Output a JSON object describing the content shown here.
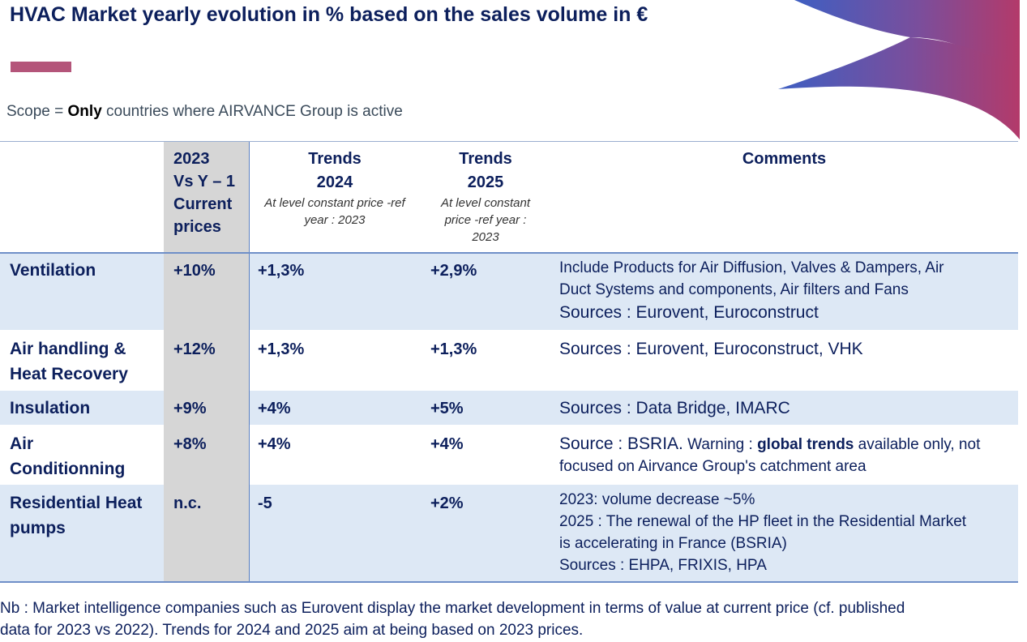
{
  "title": "HVAC Market yearly evolution in % based on the sales volume in €",
  "scope": {
    "prefix": "Scope = ",
    "emphasis": "Only",
    "suffix": " countries where AIRVANCE Group is active"
  },
  "colors": {
    "navy": "#0c1f5c",
    "accent": "#b4557a",
    "band": "#dde8f5",
    "grey_column": "#d6d6d6",
    "rule": "#6f8fc8"
  },
  "header": {
    "col2": [
      "2023",
      "Vs Y – 1",
      "Current",
      "prices"
    ],
    "col3": {
      "line1": "Trends",
      "line2": "2024",
      "note_lines": [
        "At level constant price -ref",
        "year : 2023"
      ]
    },
    "col4": {
      "line1": "Trends",
      "line2": "2025",
      "note_lines": [
        "At level constant",
        "price -ref year :",
        "2023"
      ]
    },
    "col5": "Comments"
  },
  "rows": [
    {
      "label_lines": [
        "Ventilation"
      ],
      "y2023": "+10%",
      "trend2024": "+1,3%",
      "trend2025": "+2,9%",
      "comment_lines": [
        "Include Products for Air Diffusion, Valves & Dampers, Air",
        "Duct Systems and components, Air filters and Fans"
      ],
      "sources": "Sources : Eurovent, Euroconstruct"
    },
    {
      "label_lines": [
        "Air handling &",
        "Heat Recovery"
      ],
      "y2023": "+12%",
      "trend2024": "+1,3%",
      "trend2025": "+1,3%",
      "sources": "Sources : Eurovent, Euroconstruct, VHK"
    },
    {
      "label_lines": [
        "Insulation"
      ],
      "y2023": "+9%",
      "trend2024": "+4%",
      "trend2025": "+5%",
      "sources": "Sources : Data Bridge, IMARC"
    },
    {
      "label_lines": [
        "Air",
        "Conditionning"
      ],
      "y2023": "+8%",
      "trend2024": "+4%",
      "trend2025": "+4%",
      "comment": {
        "source": "Source : BSRIA.",
        "warning_prefix": " Warning : ",
        "warning_bold": "global trends",
        "warning_rest": " available only, not",
        "line2": "focused on Airvance Group's catchment area"
      }
    },
    {
      "label_lines": [
        "Residential Heat",
        "pumps"
      ],
      "y2023": "n.c.",
      "trend2024": "-5",
      "trend2025": "+2%",
      "comment_lines": [
        "2023: volume decrease ~5%",
        "2025 : The renewal of the HP fleet in the Residential Market",
        "is accelerating in France (BSRIA)",
        "Sources : EHPA, FRIXIS, HPA"
      ]
    }
  ],
  "footnote_lines": [
    "Nb : Market intelligence companies such as Eurovent display the market development in terms of value at current price (cf. published",
    "data for 2023 vs 2022). Trends for 2024 and 2025 aim at being based on 2023 prices."
  ]
}
